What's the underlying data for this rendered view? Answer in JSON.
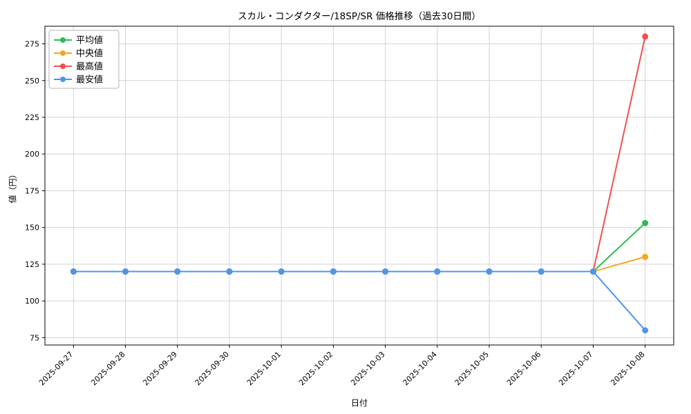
{
  "chart_data": {
    "type": "line",
    "title": "スカル・コンダクター/18SP/SR 価格推移（過去30日間）",
    "xlabel": "日付",
    "ylabel": "値（円）",
    "categories": [
      "2025-09-27",
      "2025-09-28",
      "2025-09-29",
      "2025-09-30",
      "2025-10-01",
      "2025-10-02",
      "2025-10-03",
      "2025-10-04",
      "2025-10-05",
      "2025-10-06",
      "2025-10-07",
      "2025-10-08"
    ],
    "series": [
      {
        "name": "平均値",
        "color": "#2fba52",
        "values": [
          120,
          120,
          120,
          120,
          120,
          120,
          120,
          120,
          120,
          120,
          120,
          153
        ]
      },
      {
        "name": "中央値",
        "color": "#f5a623",
        "values": [
          120,
          120,
          120,
          120,
          120,
          120,
          120,
          120,
          120,
          120,
          120,
          130
        ]
      },
      {
        "name": "最高値",
        "color": "#f0504e",
        "values": [
          120,
          120,
          120,
          120,
          120,
          120,
          120,
          120,
          120,
          120,
          120,
          280
        ]
      },
      {
        "name": "最安値",
        "color": "#4d96f0",
        "values": [
          120,
          120,
          120,
          120,
          120,
          120,
          120,
          120,
          120,
          120,
          120,
          80
        ]
      }
    ],
    "yticks": [
      75,
      100,
      125,
      150,
      175,
      200,
      225,
      250,
      275
    ],
    "ylim": [
      70,
      287
    ],
    "grid": true,
    "legend_position": "upper-left",
    "grid_color": "#d3d3d3",
    "axis_color": "#000000",
    "legend_border_color": "#b5b5b5"
  }
}
